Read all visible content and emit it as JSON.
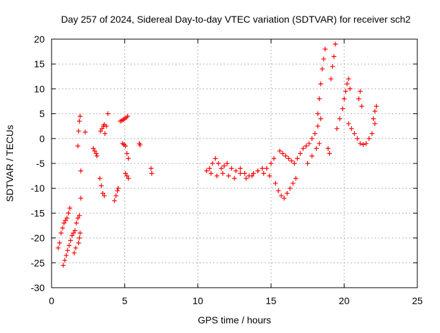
{
  "chart_data": {
    "type": "scatter",
    "title": "Day 257 of 2024, Sidereal Day-to-day VTEC variation (SDTVAR) for receiver sch2",
    "xlabel": "GPS time / hours",
    "ylabel": "SDTVAR / TECUs",
    "xlim": [
      0,
      25
    ],
    "ylim": [
      -30,
      20
    ],
    "x_ticks": [
      "0",
      "5",
      "10",
      "15",
      "20",
      "25"
    ],
    "y_ticks": [
      "20",
      "15",
      "10",
      "5",
      "0",
      "-5",
      "-10",
      "-15",
      "-20",
      "-25",
      "-30"
    ],
    "grid": true,
    "marker": "+",
    "series": [
      {
        "name": "SDTVAR",
        "color": "#ff0000",
        "x": [
          0.45,
          0.55,
          0.65,
          0.75,
          0.85,
          0.95,
          1.05,
          1.15,
          1.25,
          0.8,
          0.9,
          1.0,
          1.1,
          1.2,
          1.3,
          1.4,
          1.5,
          1.6,
          1.7,
          1.8,
          1.9,
          2.0,
          1.55,
          1.65,
          1.85,
          1.9,
          1.95,
          1.8,
          1.85,
          1.9,
          1.95,
          2.0,
          2.3,
          2.85,
          2.95,
          3.05,
          3.1,
          3.3,
          3.4,
          3.5,
          3.6,
          3.65,
          3.75,
          3.85,
          3.35,
          3.45,
          3.55,
          3.6,
          4.3,
          4.4,
          4.5,
          4.55,
          4.7,
          4.8,
          4.9,
          5.0,
          5.1,
          5.2,
          4.85,
          4.95,
          5.05,
          5.15,
          5.25,
          5.05,
          5.15,
          5.25,
          6.0,
          6.05,
          6.8,
          6.85,
          10.6,
          10.8,
          11.0,
          11.2,
          11.4,
          11.6,
          11.8,
          12.0,
          12.3,
          12.6,
          12.9,
          13.2,
          13.5,
          13.8,
          14.1,
          14.4,
          14.7,
          15.0,
          15.2,
          10.9,
          11.3,
          11.7,
          12.1,
          12.5,
          12.9,
          13.3,
          13.7,
          14.1,
          14.5,
          14.9,
          15.3,
          15.5,
          15.7,
          15.9,
          16.1,
          16.3,
          16.5,
          16.7,
          15.6,
          15.8,
          16.0,
          16.2,
          16.4,
          16.6,
          16.8,
          17.0,
          17.2,
          17.4,
          17.6,
          17.8,
          18.0,
          18.2,
          18.4,
          17.5,
          17.8,
          18.1,
          18.3,
          18.2,
          18.3,
          18.4,
          18.5,
          18.6,
          18.7,
          19.1,
          19.2,
          19.3,
          19.4,
          18.9,
          19.0,
          19.5,
          19.7,
          19.9,
          20.0,
          20.1,
          20.2,
          20.3,
          20.4,
          20.3,
          20.5,
          20.7,
          20.9,
          21.1,
          21.3,
          21.5,
          21.7,
          21.9,
          22.1,
          21.0,
          21.1,
          21.2,
          22.0,
          22.1,
          22.2
        ],
        "y": [
          -22,
          -21,
          -19,
          -18,
          -17,
          -16.5,
          -16,
          -15,
          -14,
          -25.5,
          -24.5,
          -23.5,
          -22.5,
          -21.5,
          -20.5,
          -19.5,
          -19,
          -18.5,
          -17,
          -16,
          -15.5,
          -12,
          -23,
          -22,
          -21,
          -20,
          -19,
          -1.5,
          1.5,
          3.5,
          4.5,
          -6.5,
          1.3,
          -2,
          -2.5,
          -3,
          -3.5,
          -8,
          -9.5,
          -11,
          -11.5,
          1,
          2.5,
          5,
          1.5,
          2,
          2.5,
          2.8,
          -12.5,
          -11.5,
          -10.5,
          -10,
          3.5,
          3.6,
          3.8,
          4,
          4.2,
          4.5,
          -1,
          -1.2,
          -1.5,
          -3,
          -4,
          -7,
          -7.5,
          -8,
          -1,
          -1.3,
          -6,
          -7,
          -6.5,
          -6,
          -5,
          -4,
          -5,
          -6,
          -5.5,
          -5,
          -6,
          -6.5,
          -6,
          -7,
          -7.5,
          -7,
          -6.5,
          -6,
          -6,
          -5,
          -4,
          -7,
          -7.5,
          -7,
          -7.5,
          -8,
          -7,
          -8,
          -7.5,
          -6.5,
          -7,
          -7.5,
          -9,
          -10.5,
          -11.5,
          -12,
          -11,
          -10,
          -9,
          -8,
          -2.5,
          -3,
          -3.5,
          -4,
          -4.5,
          -5,
          -4,
          -3,
          -2,
          -1.5,
          -1,
          0,
          1,
          2.5,
          4,
          -5,
          -3.5,
          -2,
          -1,
          5,
          8,
          11,
          14,
          16,
          18,
          12,
          14.5,
          16.5,
          19,
          -2,
          -3,
          2,
          4,
          6,
          8,
          9.5,
          11,
          12,
          10,
          3,
          2,
          1,
          0,
          -1,
          -1.2,
          -1,
          0,
          1,
          3,
          8,
          9.5,
          6.5,
          4,
          5.5,
          6.5
        ]
      }
    ]
  }
}
